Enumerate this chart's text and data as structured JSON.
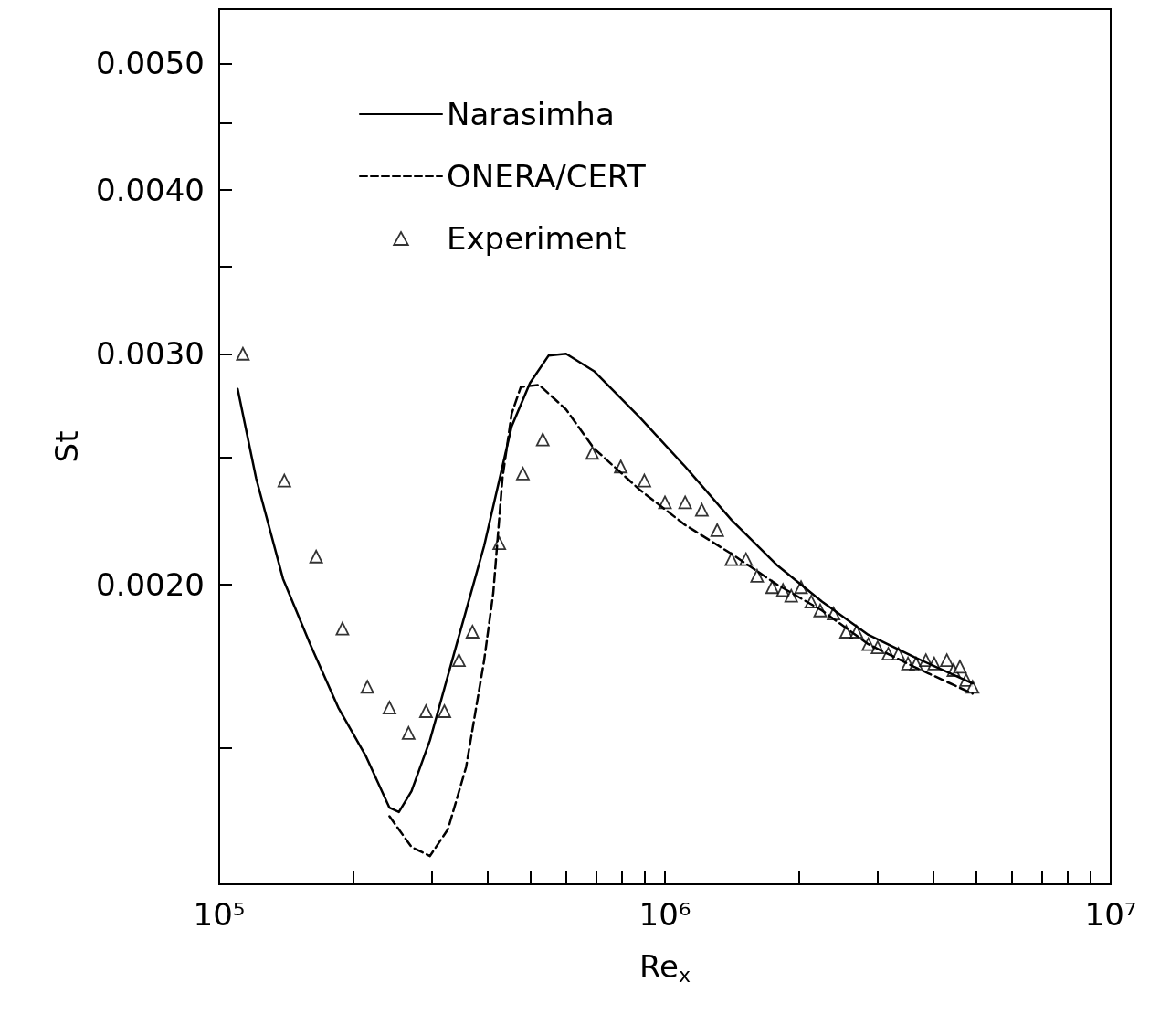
{
  "chart_data": {
    "type": "line",
    "xlabel": "Re$_{x}$",
    "ylabel": "St",
    "log": "xy",
    "legend": "top left",
    "grid": false,
    "xlim": [
      100000,
      10000000
    ],
    "xticks": [
      {
        "value": 100000,
        "label": "10⁵"
      },
      {
        "value": 200000,
        "label": null
      },
      {
        "value": 300000,
        "label": null
      },
      {
        "value": 400000,
        "label": null
      },
      {
        "value": 500000,
        "label": null
      },
      {
        "value": 600000,
        "label": null
      },
      {
        "value": 700000,
        "label": null
      },
      {
        "value": 800000,
        "label": null
      },
      {
        "value": 900000,
        "label": null
      },
      {
        "value": 1000000,
        "label": "10⁶"
      },
      {
        "value": 2000000,
        "label": null
      },
      {
        "value": 3000000,
        "label": null
      },
      {
        "value": 4000000,
        "label": null
      },
      {
        "value": 5000000,
        "label": null
      },
      {
        "value": 6000000,
        "label": null
      },
      {
        "value": 7000000,
        "label": null
      },
      {
        "value": 8000000,
        "label": null
      },
      {
        "value": 9000000,
        "label": null
      },
      {
        "value": 10000000,
        "label": "10⁷"
      }
    ],
    "ylim": [
      0.00118,
      0.0055
    ],
    "yticks": [
      {
        "value": 0.0015,
        "label": null
      },
      {
        "value": 0.002,
        "label": "0.0020"
      },
      {
        "value": 0.0025,
        "label": null
      },
      {
        "value": 0.003,
        "label": "0.0030"
      },
      {
        "value": 0.0035,
        "label": null
      },
      {
        "value": 0.004,
        "label": "0.0040"
      },
      {
        "value": 0.0045,
        "label": null
      },
      {
        "value": 0.005,
        "label": "0.0050"
      }
    ],
    "series": [
      {
        "name": "Narasimha",
        "color": "#000000",
        "line_style": "solid",
        "marker": "none",
        "x": [
          110000,
          121000,
          139000,
          160000,
          185000,
          213000,
          241000,
          253000,
          270000,
          297000,
          341000,
          393000,
          453000,
          498000,
          548000,
          600000,
          693000,
          880000,
          1110000,
          1410000,
          1780000,
          2250000,
          2860000,
          3620000,
          4900000
        ],
        "values": [
          0.00282,
          0.00241,
          0.00202,
          0.0018,
          0.00161,
          0.00148,
          0.00135,
          0.00134,
          0.00139,
          0.00152,
          0.0018,
          0.00214,
          0.00264,
          0.00285,
          0.00299,
          0.003,
          0.00291,
          0.00268,
          0.00246,
          0.00224,
          0.00207,
          0.00194,
          0.00183,
          0.00176,
          0.00168
        ]
      },
      {
        "name": "ONERA/CERT",
        "color": "#000000",
        "line_style": "dashed",
        "marker": "none",
        "x": [
          241000,
          270000,
          297000,
          326000,
          358000,
          393000,
          412000,
          432000,
          453000,
          475000,
          522000,
          600000,
          693000,
          880000,
          1110000,
          1410000,
          1780000,
          2250000,
          2860000,
          3620000,
          4900000
        ],
        "values": [
          0.00133,
          0.00126,
          0.00124,
          0.0013,
          0.00145,
          0.00175,
          0.00197,
          0.00241,
          0.0027,
          0.00283,
          0.00284,
          0.00272,
          0.00254,
          0.00236,
          0.00222,
          0.00211,
          0.002,
          0.00191,
          0.0018,
          0.00173,
          0.00165
        ]
      },
      {
        "name": "Experiment",
        "type": "scatter",
        "color": "#000000",
        "marker": "triangle",
        "x": [
          113000,
          140000,
          165000,
          189000,
          215000,
          241000,
          266000,
          291000,
          320000,
          345000,
          370000,
          425000,
          480000,
          532000,
          687000,
          796000,
          899000,
          1000000,
          1110000,
          1210000,
          1310000,
          1410000,
          1520000,
          1610000,
          1740000,
          1840000,
          1920000,
          2020000,
          2130000,
          2230000,
          2390000,
          2550000,
          2690000,
          2860000,
          3000000,
          3170000,
          3340000,
          3510000,
          3660000,
          3850000,
          4020000,
          4290000,
          4440000,
          4590000,
          4740000,
          4900000
        ],
        "values": [
          0.003,
          0.0024,
          0.0021,
          0.00185,
          0.00167,
          0.00161,
          0.00154,
          0.0016,
          0.0016,
          0.00175,
          0.00184,
          0.00215,
          0.00243,
          0.00258,
          0.00252,
          0.00246,
          0.0024,
          0.00231,
          0.00231,
          0.00228,
          0.0022,
          0.00209,
          0.00209,
          0.00203,
          0.00199,
          0.00198,
          0.00196,
          0.00199,
          0.00194,
          0.00191,
          0.0019,
          0.00184,
          0.00184,
          0.0018,
          0.00179,
          0.00177,
          0.00177,
          0.00174,
          0.00174,
          0.00175,
          0.00174,
          0.00175,
          0.00172,
          0.00173,
          0.00169,
          0.00167
        ]
      }
    ]
  }
}
